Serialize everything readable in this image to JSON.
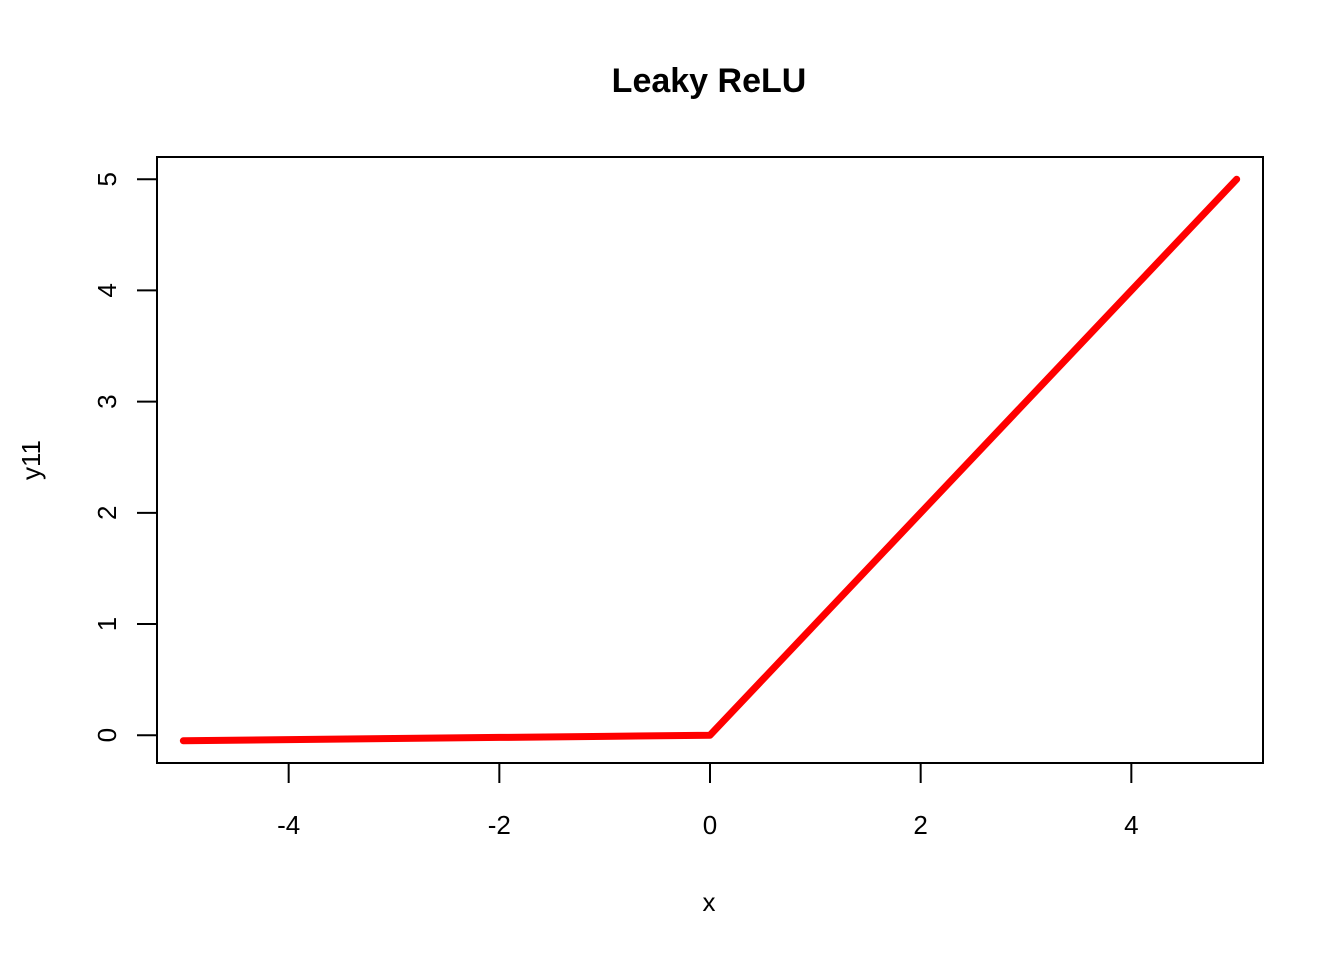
{
  "chart_data": {
    "type": "line",
    "title": "Leaky ReLU",
    "xlabel": "x",
    "ylabel": "y11",
    "xlim": [
      -5.25,
      5.25
    ],
    "ylim": [
      -0.25,
      5.2
    ],
    "xticks": [
      -4,
      -2,
      0,
      2,
      4
    ],
    "xtick_labels": [
      "-4",
      "-2",
      "0",
      "2",
      "4"
    ],
    "yticks": [
      0,
      1,
      2,
      3,
      4,
      5
    ],
    "ytick_labels": [
      "0",
      "1",
      "2",
      "3",
      "4",
      "5"
    ],
    "grid": false,
    "series": [
      {
        "color": "#ff0000",
        "x": [
          -5,
          -4,
          -3,
          -2,
          -1,
          0,
          1,
          2,
          3,
          4,
          5
        ],
        "y": [
          -0.05,
          -0.04,
          -0.03,
          -0.02,
          -0.01,
          0,
          1,
          2,
          3,
          4,
          5
        ]
      }
    ]
  }
}
